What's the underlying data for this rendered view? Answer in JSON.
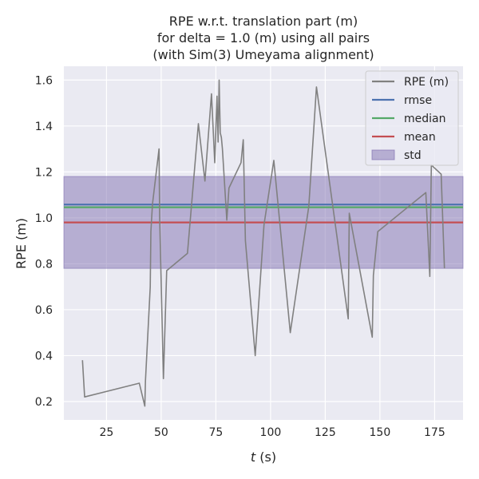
{
  "chart_data": {
    "type": "line",
    "title": [
      "RPE w.r.t. translation part (m)",
      "for delta = 1.0 (m) using all pairs",
      "(with Sim(3) Umeyama alignment)"
    ],
    "xlabel_italic": "t",
    "xlabel_suffix": " (s)",
    "ylabel": "RPE (m)",
    "xlim": [
      5.5,
      188
    ],
    "ylim": [
      0.12,
      1.66
    ],
    "xticks": [
      25,
      50,
      75,
      100,
      125,
      150,
      175
    ],
    "yticks": [
      0.2,
      0.4,
      0.6,
      0.8,
      1.0,
      1.2,
      1.4,
      1.6
    ],
    "ytick_labels": [
      "0.2",
      "0.4",
      "0.6",
      "0.8",
      "1.0",
      "1.2",
      "1.4",
      "1.6"
    ],
    "grid": true,
    "legend_position": "top-right",
    "series": [
      {
        "name": "RPE (m)",
        "color": "#808080",
        "x": [
          14.0,
          15.0,
          40.0,
          42.5,
          42.8,
          45.0,
          45.3,
          46.0,
          49.0,
          49.3,
          51.0,
          52.5,
          62.0,
          67.0,
          70.0,
          73.0,
          74.5,
          75.5,
          76.0,
          76.5,
          77.0,
          77.5,
          78.0,
          80.0,
          81.0,
          86.5,
          87.5,
          88.5,
          93.0,
          97.0,
          101.5,
          109.0,
          117.5,
          121.0,
          135.5,
          136.0,
          146.5,
          147.0,
          149.0,
          171.0,
          172.8,
          173.5,
          178.0,
          179.5
        ],
        "y": [
          0.38,
          0.22,
          0.28,
          0.18,
          0.29,
          0.7,
          0.94,
          1.06,
          1.3,
          1.0,
          0.3,
          0.77,
          0.845,
          1.41,
          1.16,
          1.54,
          1.24,
          1.53,
          1.33,
          1.6,
          1.37,
          1.35,
          1.3,
          0.99,
          1.13,
          1.24,
          1.34,
          0.9,
          0.4,
          0.97,
          1.25,
          0.5,
          1.05,
          1.57,
          0.56,
          1.02,
          0.48,
          0.75,
          0.94,
          1.11,
          0.745,
          1.23,
          1.19,
          0.78
        ]
      }
    ],
    "stats": {
      "rmse": {
        "name": "rmse",
        "value": 1.058,
        "color": "#4c72b0"
      },
      "median": {
        "name": "median",
        "value": 1.046,
        "color": "#55a868"
      },
      "mean": {
        "name": "mean",
        "value": 0.98,
        "color": "#c44e52"
      },
      "std": {
        "name": "std",
        "lower": 0.78,
        "upper": 1.18,
        "color": "#8172b2"
      }
    },
    "colors": {
      "plot_background": "#eaeaf2",
      "grid": "#ffffff",
      "text": "#262626"
    }
  }
}
